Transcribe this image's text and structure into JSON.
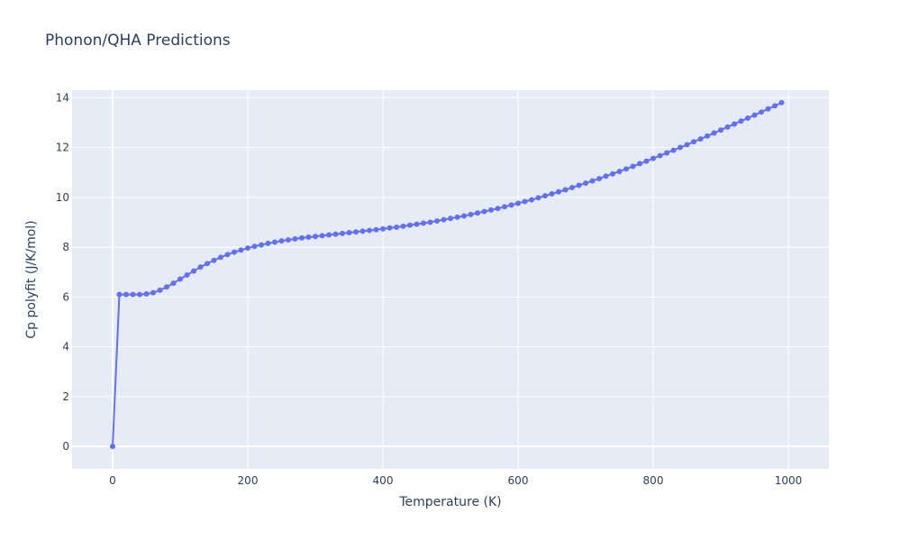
{
  "chart_data": {
    "type": "line",
    "title": "Phonon/QHA Predictions",
    "xlabel": "Temperature (K)",
    "ylabel": "Cp polyfit (J/K/mol)",
    "xlim": [
      -60,
      1060
    ],
    "ylim": [
      -0.9,
      14.3
    ],
    "x_ticks": [
      0,
      200,
      400,
      600,
      800,
      1000
    ],
    "x_tick_labels": [
      "0",
      "200",
      "400",
      "600",
      "800",
      "1000"
    ],
    "y_ticks": [
      0,
      2,
      4,
      6,
      8,
      10,
      12,
      14
    ],
    "y_tick_labels": [
      "0",
      "2",
      "4",
      "6",
      "8",
      "10",
      "12",
      "14"
    ],
    "grid": true,
    "colors": {
      "line": "#636efa",
      "plot_bg": "#e5ecf6",
      "grid": "#ffffff",
      "text": "#2a3f5f"
    },
    "series": [
      {
        "x": [
          0,
          10,
          20,
          30,
          40,
          50,
          60,
          70,
          80,
          90,
          100,
          110,
          120,
          130,
          140,
          150,
          160,
          170,
          180,
          190,
          200,
          210,
          220,
          230,
          240,
          250,
          260,
          270,
          280,
          290,
          300,
          310,
          320,
          330,
          340,
          350,
          360,
          370,
          380,
          390,
          400,
          410,
          420,
          430,
          440,
          450,
          460,
          470,
          480,
          490,
          500,
          510,
          520,
          530,
          540,
          550,
          560,
          570,
          580,
          590,
          600,
          610,
          620,
          630,
          640,
          650,
          660,
          670,
          680,
          690,
          700,
          710,
          720,
          730,
          740,
          750,
          760,
          770,
          780,
          790,
          800,
          810,
          820,
          830,
          840,
          850,
          860,
          870,
          880,
          890,
          900,
          910,
          920,
          930,
          940,
          950,
          960,
          970,
          980,
          990
        ],
        "values": [
          0,
          6.1,
          6.1,
          6.1,
          6.1,
          6.12,
          6.17,
          6.27,
          6.4,
          6.55,
          6.72,
          6.88,
          7.04,
          7.2,
          7.34,
          7.47,
          7.59,
          7.7,
          7.8,
          7.88,
          7.96,
          8.03,
          8.09,
          8.15,
          8.2,
          8.25,
          8.29,
          8.33,
          8.37,
          8.4,
          8.43,
          8.46,
          8.49,
          8.52,
          8.55,
          8.58,
          8.61,
          8.64,
          8.67,
          8.7,
          8.73,
          8.77,
          8.8,
          8.84,
          8.88,
          8.92,
          8.96,
          9.0,
          9.05,
          9.1,
          9.15,
          9.2,
          9.25,
          9.31,
          9.37,
          9.43,
          9.49,
          9.55,
          9.62,
          9.69,
          9.76,
          9.83,
          9.9,
          9.98,
          10.06,
          10.14,
          10.22,
          10.3,
          10.39,
          10.48,
          10.57,
          10.66,
          10.75,
          10.85,
          10.94,
          11.04,
          11.14,
          11.24,
          11.35,
          11.45,
          11.56,
          11.67,
          11.78,
          11.89,
          12.0,
          12.11,
          12.23,
          12.34,
          12.46,
          12.58,
          12.7,
          12.82,
          12.94,
          13.06,
          13.18,
          13.3,
          13.42,
          13.55,
          13.67,
          13.8
        ]
      }
    ]
  }
}
